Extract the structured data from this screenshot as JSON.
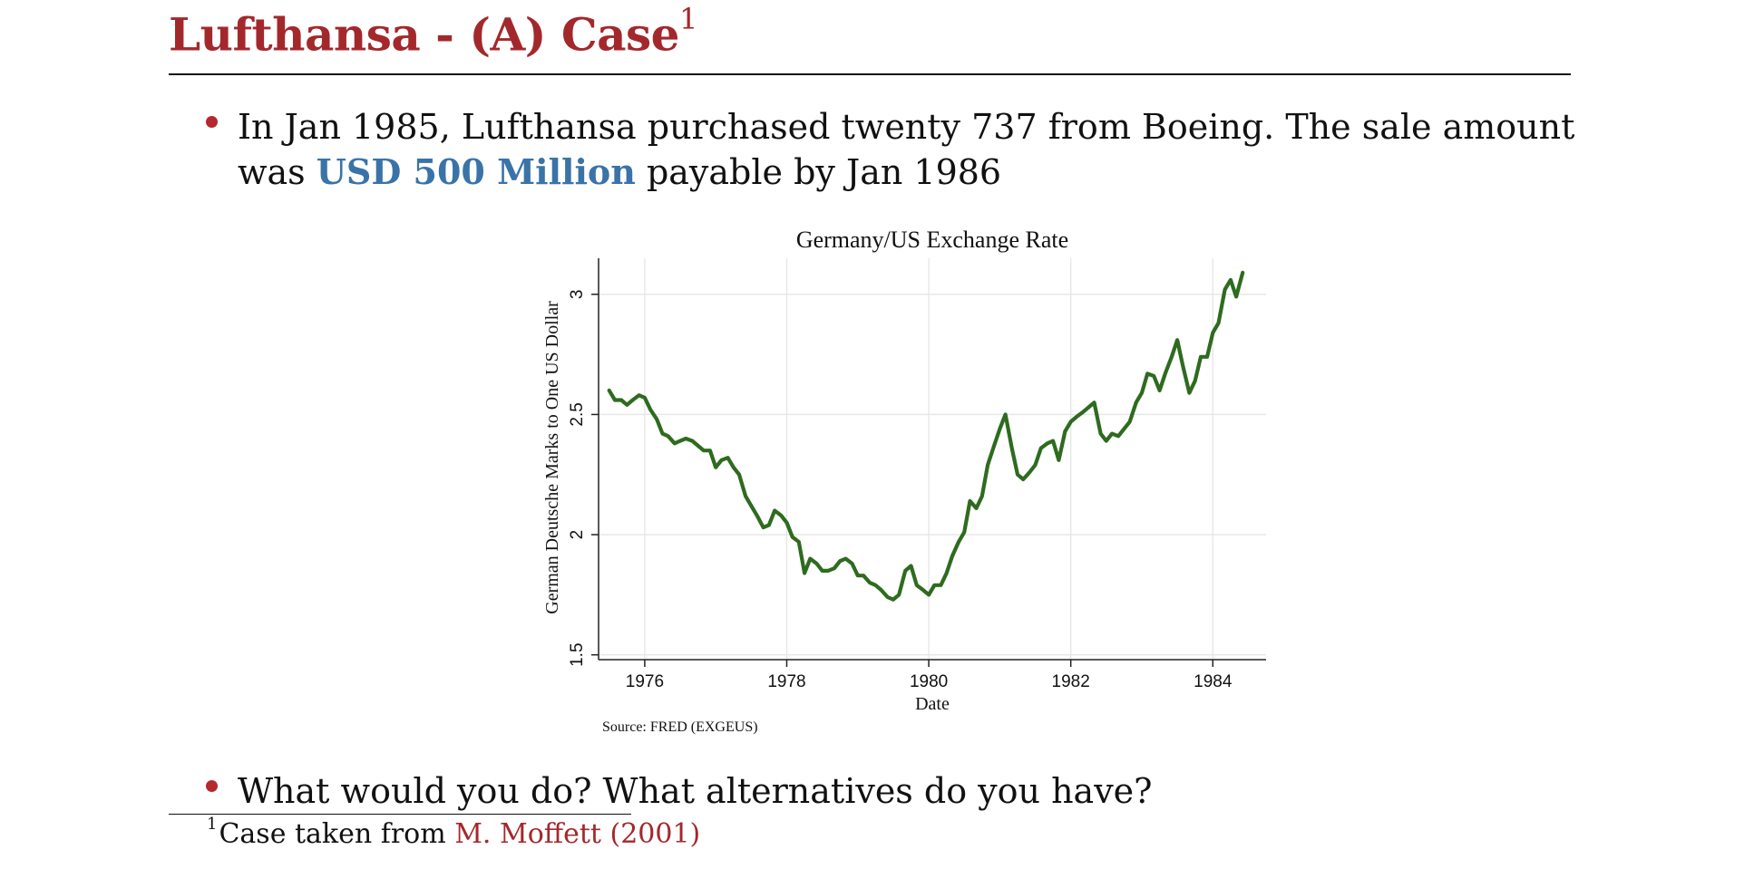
{
  "slide": {
    "title": "Lufthansa - (A) Case",
    "title_footnote_mark": "1",
    "bullets": [
      {
        "line1": "In Jan 1985, Lufthansa purchased twenty 737 from Boeing. The sale amount",
        "line2_prefix": "was ",
        "line2_highlight": "USD 500 Million",
        "line2_suffix": " payable by Jan 1986"
      },
      {
        "text": "What would you do? What alternatives do you have?"
      }
    ],
    "footnote": {
      "mark": "1",
      "text": "Case taken from ",
      "reference": "M. Moffett (2001)"
    }
  },
  "colors": {
    "title": "#a3282c",
    "highlight": "#3a73a8",
    "bullet": "#b5282d",
    "series_line": "#2e6b1f",
    "grid": "#e6e6e6"
  },
  "chart_data": {
    "type": "line",
    "title": "Germany/US Exchange Rate",
    "xlabel": "Date",
    "ylabel": "German Deutsche Marks to One US Dollar",
    "source_note": "Source: FRED (EXGEUS)",
    "xlim": [
      1975.35,
      1984.75
    ],
    "ylim": [
      1.48,
      3.15
    ],
    "xticks": [
      1976,
      1978,
      1980,
      1982,
      1984
    ],
    "xtick_labels": [
      "1976",
      "1978",
      "1980",
      "1982",
      "1984"
    ],
    "yticks": [
      1.5,
      2,
      2.5,
      3
    ],
    "ytick_labels": [
      "1.5",
      "2",
      "2.5",
      "3"
    ],
    "grid": true,
    "legend": "none",
    "series": [
      {
        "x": [
          1975.5,
          1975.58,
          1975.67,
          1975.75,
          1975.83,
          1975.92,
          1976.0,
          1976.08,
          1976.17,
          1976.25,
          1976.33,
          1976.42,
          1976.5,
          1976.58,
          1976.67,
          1976.75,
          1976.83,
          1976.92,
          1977.0,
          1977.08,
          1977.17,
          1977.25,
          1977.33,
          1977.42,
          1977.5,
          1977.58,
          1977.67,
          1977.75,
          1977.83,
          1977.92,
          1978.0,
          1978.08,
          1978.17,
          1978.25,
          1978.33,
          1978.42,
          1978.5,
          1978.58,
          1978.67,
          1978.75,
          1978.83,
          1978.92,
          1979.0,
          1979.08,
          1979.17,
          1979.25,
          1979.33,
          1979.42,
          1979.5,
          1979.58,
          1979.67,
          1979.75,
          1979.83,
          1979.92,
          1980.0,
          1980.08,
          1980.17,
          1980.25,
          1980.33,
          1980.42,
          1980.5,
          1980.58,
          1980.67,
          1980.75,
          1980.83,
          1980.92,
          1981.0,
          1981.08,
          1981.17,
          1981.25,
          1981.33,
          1981.42,
          1981.5,
          1981.58,
          1981.67,
          1981.75,
          1981.83,
          1981.92,
          1982.0,
          1982.08,
          1982.17,
          1982.25,
          1982.33,
          1982.42,
          1982.5,
          1982.58,
          1982.67,
          1982.75,
          1982.83,
          1982.92,
          1983.0,
          1983.08,
          1983.17,
          1983.25,
          1983.33,
          1983.42,
          1983.5,
          1983.58,
          1983.67,
          1983.75,
          1983.83,
          1983.92,
          1984.0,
          1984.08,
          1984.17,
          1984.25,
          1984.33,
          1984.42
        ],
        "y": [
          2.6,
          2.56,
          2.56,
          2.54,
          2.56,
          2.58,
          2.57,
          2.52,
          2.48,
          2.42,
          2.41,
          2.38,
          2.39,
          2.4,
          2.39,
          2.37,
          2.35,
          2.35,
          2.28,
          2.31,
          2.32,
          2.28,
          2.25,
          2.16,
          2.12,
          2.08,
          2.03,
          2.04,
          2.1,
          2.08,
          2.05,
          1.99,
          1.97,
          1.84,
          1.9,
          1.88,
          1.85,
          1.85,
          1.86,
          1.89,
          1.9,
          1.88,
          1.83,
          1.83,
          1.8,
          1.79,
          1.77,
          1.74,
          1.73,
          1.75,
          1.85,
          1.87,
          1.79,
          1.77,
          1.75,
          1.79,
          1.79,
          1.84,
          1.91,
          1.97,
          2.01,
          2.14,
          2.11,
          2.16,
          2.29,
          2.37,
          2.44,
          2.5,
          2.36,
          2.25,
          2.23,
          2.26,
          2.29,
          2.36,
          2.38,
          2.39,
          2.31,
          2.43,
          2.47,
          2.49,
          2.51,
          2.53,
          2.55,
          2.42,
          2.39,
          2.42,
          2.41,
          2.44,
          2.47,
          2.55,
          2.59,
          2.67,
          2.66,
          2.6,
          2.67,
          2.74,
          2.81,
          2.7,
          2.59,
          2.64,
          2.74,
          2.74,
          2.84,
          2.88,
          3.02,
          3.06,
          2.99,
          3.09
        ]
      }
    ]
  }
}
